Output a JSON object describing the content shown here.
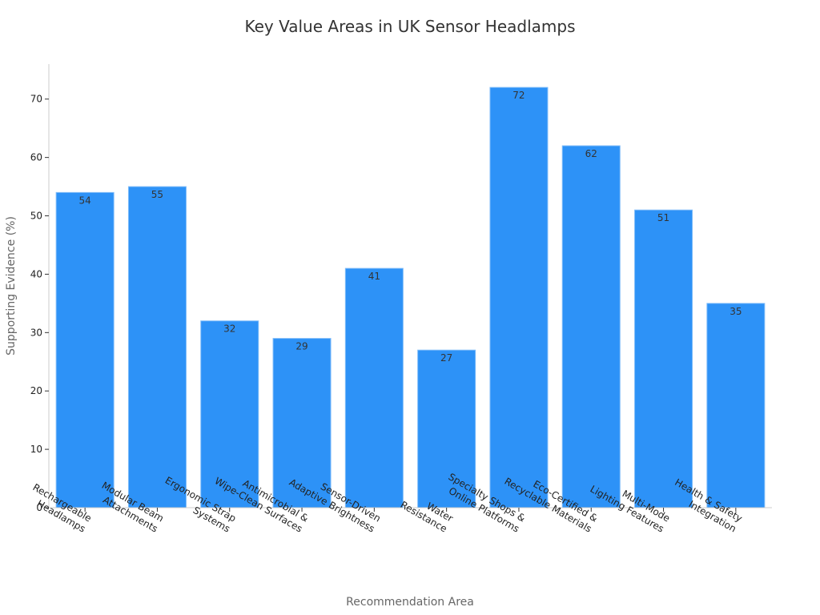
{
  "chart_data": {
    "type": "bar",
    "title": "Key Value Areas in UK Sensor Headlamps",
    "xlabel": "Recommendation Area",
    "ylabel": "Supporting Evidence (%)",
    "ylim": [
      0,
      76
    ],
    "yticks": [
      0,
      10,
      20,
      30,
      40,
      50,
      60,
      70
    ],
    "grid": false,
    "categories": [
      [
        "Rechargeable",
        "Headlamps"
      ],
      [
        "Modular Beam",
        "Attachments"
      ],
      [
        "Ergonomic Strap",
        "Systems"
      ],
      [
        "Antimicrobial &",
        "Wipe-Clean Surfaces"
      ],
      [
        "Sensor-Driven",
        "Adaptive Brightness"
      ],
      [
        "Water",
        "Resistance"
      ],
      [
        "Specialty Shops &",
        "Online Platforms"
      ],
      [
        "Eco-Certified &",
        "Recyclable Materials"
      ],
      [
        "Multi-Mode",
        "Lighting Features"
      ],
      [
        "Health & Safety",
        "Integration"
      ]
    ],
    "values": [
      54,
      55,
      32,
      29,
      41,
      27,
      72,
      62,
      51,
      35
    ],
    "bar_color": "#2d92f7",
    "bar_edge_color": "#7fbcf9"
  }
}
